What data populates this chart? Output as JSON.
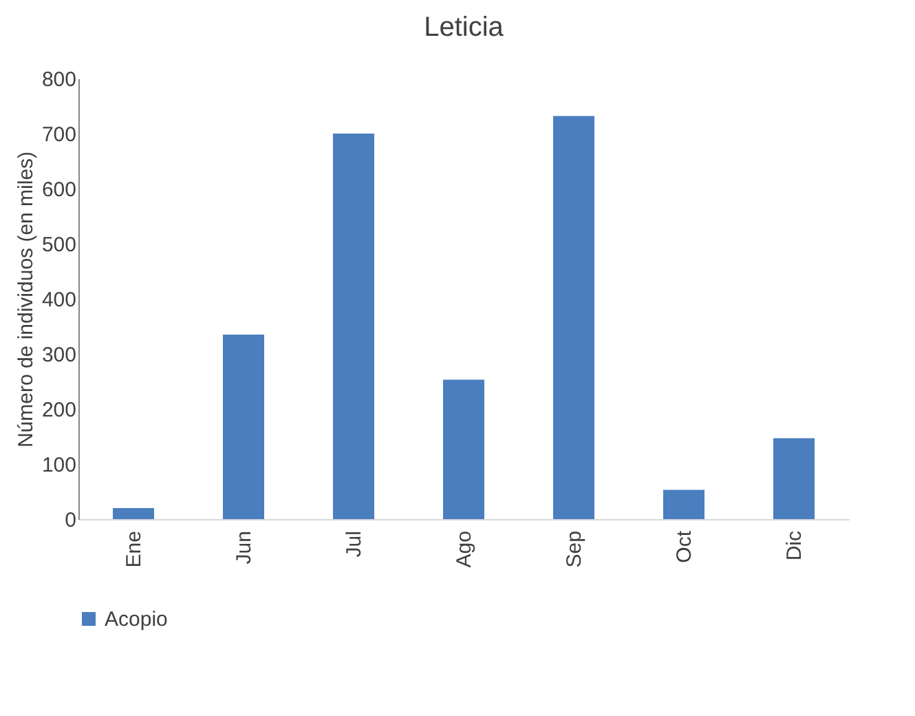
{
  "chart_data": {
    "type": "bar",
    "title": "Leticia",
    "ylabel": "Número de individuos (en miles)",
    "categories": [
      "Ene",
      "Jun",
      "Jul",
      "Ago",
      "Sep",
      "Oct",
      "Dic"
    ],
    "series": [
      {
        "name": "Acopio",
        "color": "#4a7ebf",
        "values": [
          20,
          335,
          700,
          253,
          732,
          53,
          147
        ]
      }
    ],
    "ylim": [
      0,
      800
    ],
    "yticks": [
      0,
      100,
      200,
      300,
      400,
      500,
      600,
      700,
      800
    ],
    "grid": false,
    "legend": "bottom"
  }
}
